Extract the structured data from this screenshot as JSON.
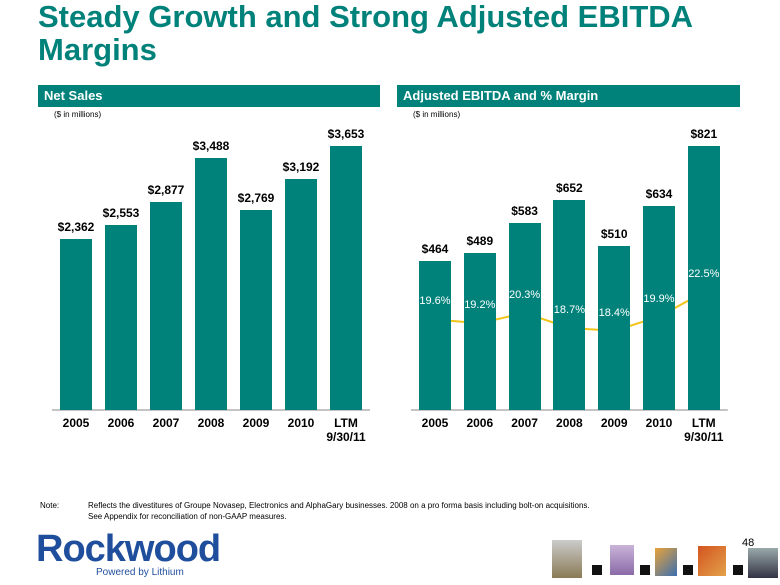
{
  "title": "Steady Growth and Strong Adjusted EBITDA Margins",
  "chart_data": [
    {
      "type": "bar",
      "title": "Net Sales",
      "subtitle": "($ in millions)",
      "categories": [
        "2005",
        "2006",
        "2007",
        "2008",
        "2009",
        "2010",
        "LTM 9/30/11"
      ],
      "values": [
        2362,
        2553,
        2877,
        3488,
        2769,
        3192,
        3653
      ],
      "value_labels": [
        "$2,362",
        "$2,553",
        "$2,877",
        "$3,488",
        "$2,769",
        "$3,192",
        "$3,653"
      ],
      "color": "#00827a",
      "ylim": [
        0,
        3653
      ]
    },
    {
      "type": "bar",
      "title": "Adjusted EBITDA and % Margin",
      "subtitle": "($ in millions)",
      "categories": [
        "2005",
        "2006",
        "2007",
        "2008",
        "2009",
        "2010",
        "LTM 9/30/11"
      ],
      "values": [
        464,
        489,
        583,
        652,
        510,
        634,
        821
      ],
      "value_labels": [
        "$464",
        "$489",
        "$583",
        "$652",
        "$510",
        "$634",
        "$821"
      ],
      "color": "#00827a",
      "ylim": [
        0,
        821
      ],
      "margin": {
        "type": "line",
        "axis": "y2",
        "color": "#f0c419",
        "values": [
          19.6,
          19.2,
          20.3,
          18.7,
          18.4,
          19.9,
          22.5
        ],
        "value_labels": [
          "19.6%",
          "19.2%",
          "20.3%",
          "18.7%",
          "18.4%",
          "19.9%",
          "22.5%"
        ]
      },
      "y2lim": [
        10,
        38
      ]
    }
  ],
  "note_label": "Note:",
  "note": [
    "Reflects the divestitures of Groupe Novasep, Electronics and AlphaGary businesses. 2008 on a pro forma basis including bolt-on acquisitions.",
    "See Appendix for reconciliation of non-GAAP measures."
  ],
  "logo": {
    "name": "Rockwood",
    "tagline": "Powered by Lithium"
  },
  "page_number": "48"
}
